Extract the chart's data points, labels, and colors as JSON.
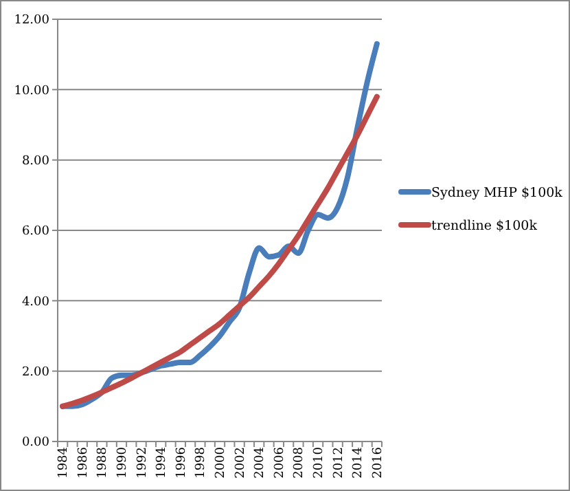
{
  "chart_data": {
    "type": "line",
    "categories": [
      "1984",
      null,
      "1986",
      null,
      "1988",
      null,
      "1990",
      null,
      "1992",
      null,
      "1994",
      null,
      "1996",
      null,
      "1998",
      null,
      "2000",
      null,
      "2002",
      null,
      "2004",
      null,
      "2006",
      null,
      "2008",
      null,
      "2010",
      null,
      "2012",
      null,
      "2014",
      null,
      "2016"
    ],
    "series": [
      {
        "name": "Sydney MHP $100k",
        "color": "#4a7ebb",
        "values": [
          1.0,
          1.0,
          1.05,
          1.2,
          1.4,
          1.8,
          1.88,
          1.88,
          1.95,
          2.05,
          2.15,
          2.2,
          2.25,
          2.25,
          2.45,
          2.7,
          3.0,
          3.4,
          3.8,
          4.8,
          5.5,
          5.25,
          5.3,
          5.55,
          5.35,
          6.0,
          6.45,
          6.35,
          6.65,
          7.5,
          8.9,
          10.2,
          11.3
        ]
      },
      {
        "name": "trendline $100k",
        "color": "#be4b48",
        "values": [
          1.0,
          1.08,
          1.17,
          1.28,
          1.4,
          1.53,
          1.66,
          1.8,
          1.95,
          2.1,
          2.25,
          2.4,
          2.55,
          2.75,
          2.95,
          3.15,
          3.35,
          3.6,
          3.85,
          4.1,
          4.4,
          4.7,
          5.05,
          5.45,
          5.85,
          6.3,
          6.75,
          7.2,
          7.7,
          8.2,
          8.7,
          9.25,
          9.8
        ]
      }
    ],
    "ylim": [
      0,
      12
    ],
    "yticks": [
      {
        "value": 0,
        "label": "0.00"
      },
      {
        "value": 2,
        "label": "2.00"
      },
      {
        "value": 4,
        "label": "4.00"
      },
      {
        "value": 6,
        "label": "6.00"
      },
      {
        "value": 8,
        "label": "8.00"
      },
      {
        "value": 10,
        "label": "10.00"
      },
      {
        "value": 12,
        "label": "12.00"
      }
    ],
    "grid": "y",
    "legend": "right",
    "marker": "none",
    "line_style": "solid"
  }
}
